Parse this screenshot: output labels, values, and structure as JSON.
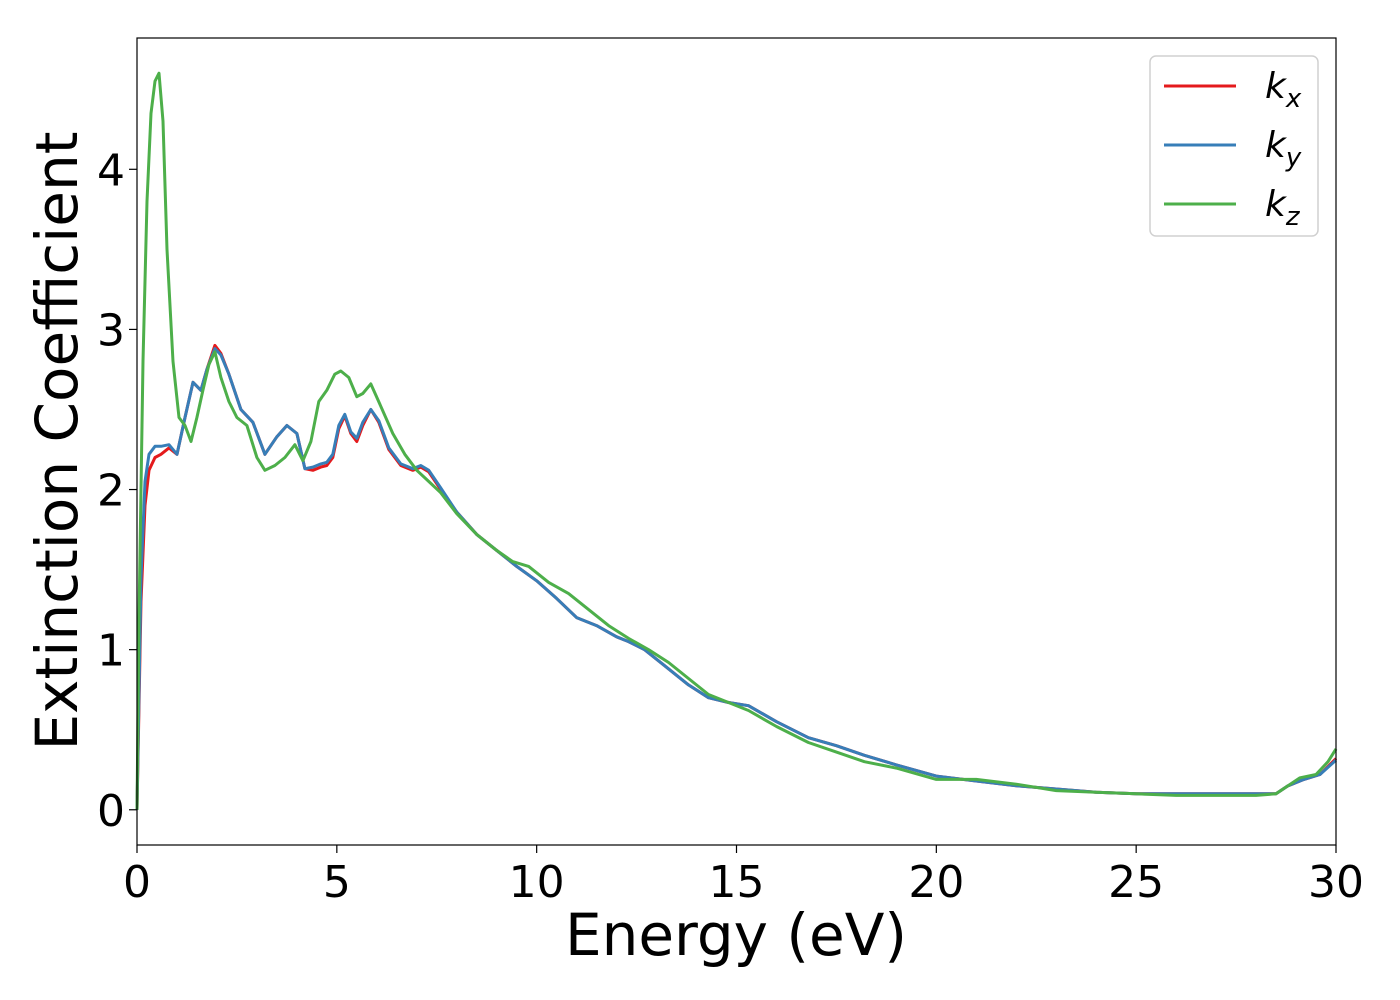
{
  "chart_data": {
    "type": "line",
    "xlabel": "Energy (eV)",
    "ylabel": "Extinction Coefficient",
    "xlim": [
      0,
      30
    ],
    "ylim": [
      -0.22,
      4.82
    ],
    "xticks": [
      0,
      5,
      10,
      15,
      20,
      25,
      30
    ],
    "yticks": [
      0,
      1,
      2,
      3,
      4
    ],
    "grid": false,
    "legend_position": "top-right",
    "series": [
      {
        "name": "k_x",
        "label_main": "k",
        "label_sub": "x",
        "color": "#e41a1c",
        "x": [
          0,
          0.1,
          0.2,
          0.3,
          0.45,
          0.6,
          0.8,
          1.0,
          1.2,
          1.4,
          1.6,
          1.75,
          1.95,
          2.1,
          2.3,
          2.6,
          2.9,
          3.2,
          3.5,
          3.75,
          4.0,
          4.2,
          4.4,
          4.6,
          4.75,
          4.9,
          5.05,
          5.2,
          5.35,
          5.5,
          5.65,
          5.85,
          6.05,
          6.3,
          6.6,
          6.9,
          7.1,
          7.3,
          7.6,
          8.0,
          8.5,
          9.0,
          9.5,
          10.0,
          10.5,
          11.0,
          11.5,
          12.0,
          12.3,
          12.7,
          13.2,
          13.8,
          14.3,
          14.8,
          15.3,
          16.0,
          16.8,
          17.5,
          18.2,
          19.0,
          20.0,
          21.0,
          22.0,
          23.0,
          24.0,
          25.0,
          26.0,
          27.0,
          28.0,
          28.5,
          28.8,
          29.2,
          29.6,
          30.0
        ],
        "y": [
          0,
          1.3,
          1.9,
          2.12,
          2.2,
          2.22,
          2.26,
          2.22,
          2.45,
          2.67,
          2.62,
          2.75,
          2.9,
          2.85,
          2.72,
          2.5,
          2.42,
          2.22,
          2.33,
          2.4,
          2.35,
          2.13,
          2.12,
          2.14,
          2.15,
          2.2,
          2.38,
          2.46,
          2.35,
          2.3,
          2.4,
          2.5,
          2.42,
          2.25,
          2.15,
          2.12,
          2.14,
          2.11,
          2.0,
          1.86,
          1.72,
          1.62,
          1.52,
          1.43,
          1.32,
          1.2,
          1.15,
          1.08,
          1.05,
          1.0,
          0.9,
          0.78,
          0.7,
          0.67,
          0.65,
          0.55,
          0.45,
          0.4,
          0.34,
          0.28,
          0.21,
          0.18,
          0.15,
          0.13,
          0.11,
          0.1,
          0.1,
          0.1,
          0.1,
          0.1,
          0.15,
          0.19,
          0.22,
          0.32
        ]
      },
      {
        "name": "k_y",
        "label_main": "k",
        "label_sub": "y",
        "color": "#377eb8",
        "x": [
          0,
          0.1,
          0.2,
          0.3,
          0.45,
          0.6,
          0.8,
          1.0,
          1.2,
          1.4,
          1.6,
          1.75,
          1.95,
          2.1,
          2.3,
          2.6,
          2.9,
          3.2,
          3.5,
          3.75,
          4.0,
          4.2,
          4.4,
          4.6,
          4.75,
          4.9,
          5.05,
          5.2,
          5.35,
          5.5,
          5.65,
          5.85,
          6.05,
          6.3,
          6.6,
          6.9,
          7.1,
          7.3,
          7.6,
          8.0,
          8.5,
          9.0,
          9.5,
          10.0,
          10.5,
          11.0,
          11.5,
          12.0,
          12.3,
          12.7,
          13.2,
          13.8,
          14.3,
          14.8,
          15.3,
          16.0,
          16.8,
          17.5,
          18.2,
          19.0,
          20.0,
          21.0,
          22.0,
          23.0,
          24.0,
          25.0,
          26.0,
          27.0,
          28.0,
          28.5,
          28.8,
          29.2,
          29.6,
          30.0
        ],
        "y": [
          0,
          1.45,
          2.05,
          2.22,
          2.27,
          2.27,
          2.28,
          2.22,
          2.45,
          2.67,
          2.62,
          2.75,
          2.88,
          2.84,
          2.72,
          2.5,
          2.42,
          2.22,
          2.33,
          2.4,
          2.35,
          2.13,
          2.14,
          2.16,
          2.17,
          2.22,
          2.4,
          2.47,
          2.36,
          2.32,
          2.42,
          2.5,
          2.43,
          2.26,
          2.16,
          2.13,
          2.15,
          2.12,
          2.01,
          1.86,
          1.72,
          1.62,
          1.52,
          1.43,
          1.32,
          1.2,
          1.15,
          1.08,
          1.05,
          1.0,
          0.9,
          0.78,
          0.7,
          0.67,
          0.65,
          0.55,
          0.45,
          0.4,
          0.34,
          0.28,
          0.21,
          0.18,
          0.15,
          0.13,
          0.11,
          0.1,
          0.1,
          0.1,
          0.1,
          0.1,
          0.15,
          0.19,
          0.22,
          0.31
        ]
      },
      {
        "name": "k_z",
        "label_main": "k",
        "label_sub": "z",
        "color": "#4daf4a",
        "x": [
          0,
          0.05,
          0.15,
          0.25,
          0.35,
          0.45,
          0.55,
          0.65,
          0.75,
          0.9,
          1.05,
          1.2,
          1.35,
          1.5,
          1.65,
          1.8,
          1.95,
          2.1,
          2.3,
          2.5,
          2.75,
          3.0,
          3.2,
          3.45,
          3.7,
          3.95,
          4.15,
          4.35,
          4.55,
          4.75,
          4.95,
          5.1,
          5.3,
          5.5,
          5.65,
          5.85,
          6.1,
          6.4,
          6.7,
          7.0,
          7.3,
          7.6,
          8.0,
          8.5,
          9.0,
          9.4,
          9.8,
          10.3,
          10.8,
          11.3,
          11.8,
          12.3,
          12.8,
          13.3,
          13.8,
          14.3,
          14.8,
          15.3,
          16.0,
          16.8,
          17.5,
          18.2,
          19.0,
          20.0,
          21.0,
          22.0,
          23.0,
          24.0,
          25.0,
          26.0,
          27.0,
          28.0,
          28.5,
          28.8,
          29.1,
          29.5,
          29.8,
          30.0
        ],
        "y": [
          0,
          1.2,
          2.8,
          3.8,
          4.35,
          4.55,
          4.6,
          4.3,
          3.5,
          2.8,
          2.45,
          2.4,
          2.3,
          2.45,
          2.62,
          2.78,
          2.86,
          2.7,
          2.55,
          2.45,
          2.4,
          2.2,
          2.12,
          2.15,
          2.2,
          2.28,
          2.18,
          2.3,
          2.55,
          2.62,
          2.72,
          2.74,
          2.7,
          2.58,
          2.6,
          2.66,
          2.52,
          2.35,
          2.22,
          2.12,
          2.05,
          1.98,
          1.85,
          1.72,
          1.62,
          1.55,
          1.52,
          1.42,
          1.35,
          1.25,
          1.15,
          1.07,
          1.0,
          0.92,
          0.82,
          0.72,
          0.67,
          0.62,
          0.52,
          0.42,
          0.36,
          0.3,
          0.26,
          0.19,
          0.19,
          0.16,
          0.12,
          0.11,
          0.1,
          0.09,
          0.09,
          0.09,
          0.1,
          0.15,
          0.2,
          0.22,
          0.3,
          0.38
        ]
      }
    ]
  }
}
